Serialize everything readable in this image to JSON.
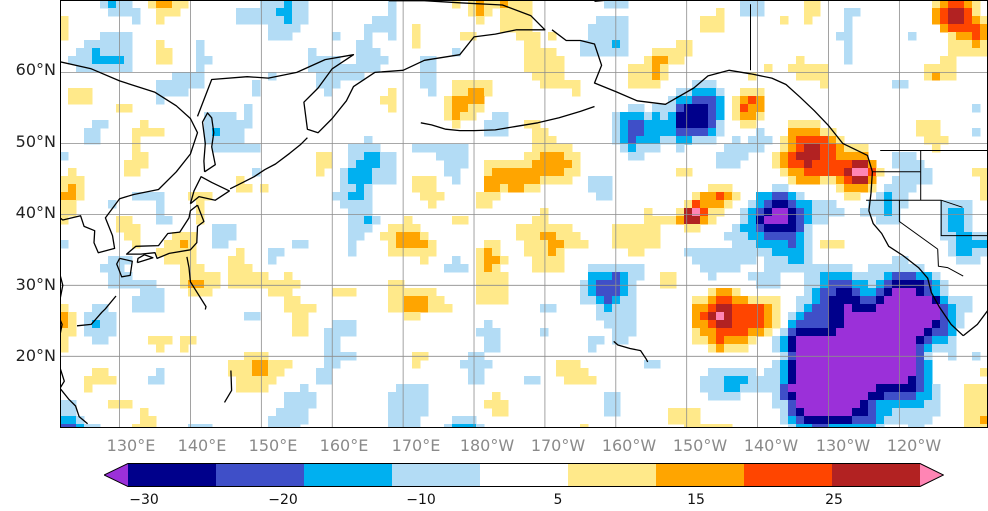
{
  "map": {
    "lat_labels": [
      "60°N",
      "50°N",
      "40°N",
      "30°N",
      "20°N"
    ],
    "lon_labels": [
      "130°E",
      "140°E",
      "150°E",
      "160°E",
      "170°E",
      "180°W",
      "170°W",
      "160°W",
      "150°W",
      "140°W",
      "130°W",
      "120°W"
    ],
    "lat_values": [
      60,
      50,
      40,
      30,
      20
    ],
    "lon_values": [
      130,
      140,
      150,
      160,
      170,
      180,
      190,
      200,
      210,
      220,
      230,
      240
    ],
    "extent": {
      "lon_min": 121.6,
      "lon_max": 252.5,
      "lat_min": 9.9,
      "lat_max": 70.2
    }
  },
  "colorbar": {
    "tick_labels": [
      "−30",
      "−20",
      "−10",
      "5",
      "15",
      "25"
    ],
    "tick_values": [
      -30,
      -20,
      -10,
      5,
      15,
      25
    ],
    "levels": [
      -30,
      -25,
      -20,
      -15,
      -10,
      -5,
      5,
      10,
      15,
      20,
      25,
      30
    ],
    "colors": [
      "#9b30d9",
      "#00008b",
      "#3f4fc8",
      "#00b0f0",
      "#b3dcf5",
      "#ffffff",
      "#ffe98a",
      "#ffa500",
      "#ff4500",
      "#b22222",
      "#ff85b4"
    ],
    "extend": "both"
  },
  "style": {
    "coast_color": "#000000",
    "grid_color": "#8c8c8c",
    "lon_label_color": "#8a8a8a"
  }
}
